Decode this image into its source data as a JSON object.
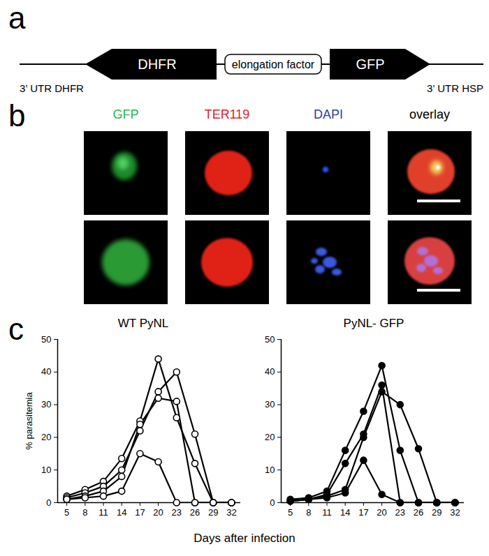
{
  "panel_labels": [
    "a",
    "b",
    "c"
  ],
  "construct": {
    "left_arrow": "DHFR",
    "promoter": "elongation factor",
    "right_arrow": "GFP",
    "left_label": "3’ UTR DHFR",
    "right_label": "3’ UTR HSP"
  },
  "microscopy": {
    "channels": [
      {
        "text": "GFP",
        "color": "#2db34a"
      },
      {
        "text": "TER119",
        "color": "#e0201b"
      },
      {
        "text": "DAPI",
        "color": "#2a3fa8"
      },
      {
        "text": "overlay",
        "color": "#000000"
      }
    ]
  },
  "shared_xlabel": "Days after infection",
  "chart_data": [
    {
      "type": "line",
      "title": "WT PyNL",
      "ylabel": "% parasitemia",
      "marker": "open circle",
      "color": "#000000",
      "grid": false,
      "x": [
        5,
        8,
        11,
        14,
        17,
        20,
        23,
        26,
        29,
        32
      ],
      "xlim": [
        3.5,
        33.5
      ],
      "xticks": [
        5,
        8,
        11,
        14,
        17,
        20,
        23,
        26,
        29,
        32
      ],
      "ylim": [
        0,
        50
      ],
      "yticks": [
        0,
        10,
        20,
        30,
        40,
        50
      ],
      "series": [
        {
          "values": [
            2,
            4,
            6.5,
            13.5,
            25,
            44,
            26,
            12,
            0,
            0
          ]
        },
        {
          "values": [
            1.5,
            3,
            5,
            10,
            22,
            34,
            40,
            21,
            0,
            0
          ]
        },
        {
          "values": [
            1,
            2,
            3.5,
            8,
            24,
            32,
            31,
            0,
            0,
            0
          ]
        },
        {
          "values": [
            1,
            1.5,
            2,
            3.5,
            15,
            12.5,
            0,
            0,
            0,
            0
          ]
        }
      ]
    },
    {
      "type": "line",
      "title": "PyNL- GFP",
      "marker": "filled circle",
      "color": "#000000",
      "grid": false,
      "x": [
        5,
        8,
        11,
        14,
        17,
        20,
        23,
        26,
        29,
        32
      ],
      "xlim": [
        3.5,
        33.5
      ],
      "xticks": [
        5,
        8,
        11,
        14,
        17,
        20,
        23,
        26,
        29,
        32
      ],
      "ylim": [
        0,
        50
      ],
      "yticks": [
        0,
        10,
        20,
        30,
        40,
        50
      ],
      "series": [
        {
          "values": [
            1,
            1.5,
            3.5,
            16,
            28,
            42,
            16,
            0,
            0,
            0
          ]
        },
        {
          "values": [
            0.5,
            1,
            2.5,
            12,
            21,
            36,
            0,
            0,
            0,
            0
          ]
        },
        {
          "values": [
            0.5,
            1,
            2,
            4,
            20,
            34,
            30,
            16.5,
            0,
            0
          ]
        },
        {
          "values": [
            0.5,
            1,
            1.5,
            3,
            13,
            2.5,
            0,
            0,
            0,
            0
          ]
        }
      ]
    }
  ]
}
